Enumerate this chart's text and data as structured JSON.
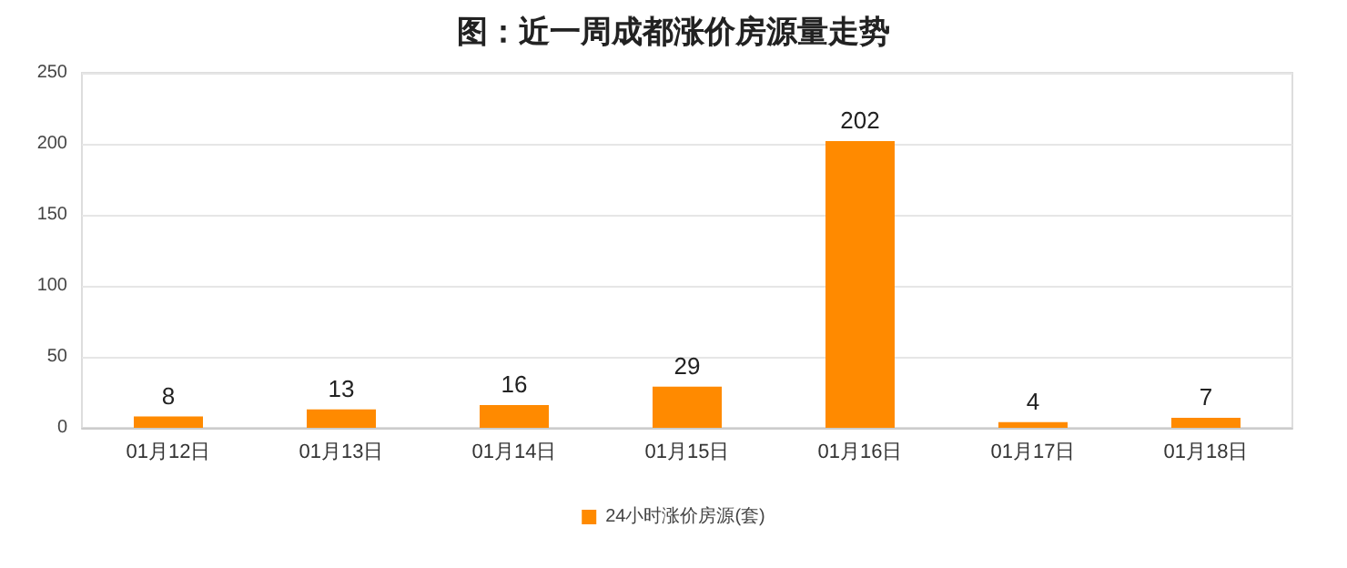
{
  "chart_data": {
    "type": "bar",
    "title": "图：近一周成都涨价房源量走势",
    "categories": [
      "01月12日",
      "01月13日",
      "01月14日",
      "01月15日",
      "01月16日",
      "01月17日",
      "01月18日"
    ],
    "series": [
      {
        "name": "24小时涨价房源(套)",
        "color": "#ff8a00",
        "values": [
          8,
          13,
          16,
          29,
          202,
          4,
          7
        ]
      }
    ],
    "ylim": [
      0,
      250
    ],
    "yticks": [
      0,
      50,
      100,
      150,
      200,
      250
    ],
    "grid": "y",
    "legend": "bottom",
    "data_labels": true
  }
}
